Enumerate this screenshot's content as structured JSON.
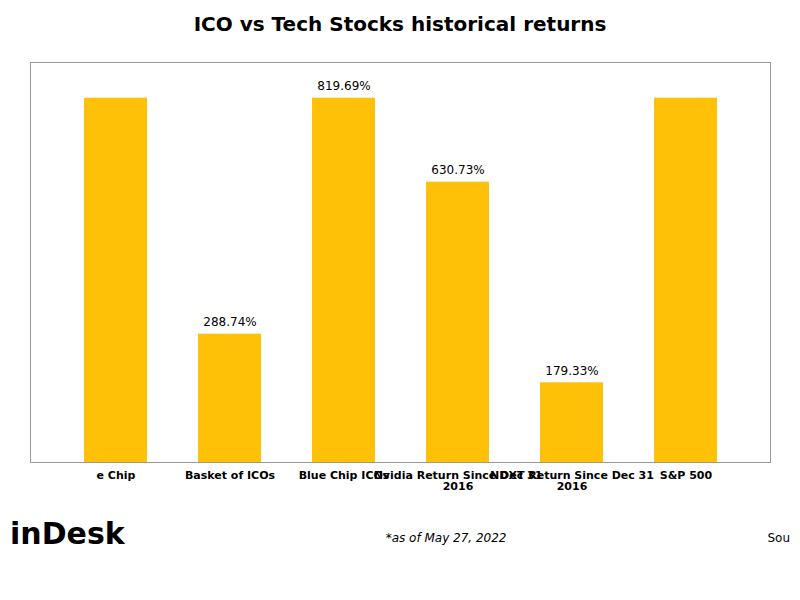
{
  "chart_data": {
    "type": "bar",
    "title": "ICO vs Tech Stocks historical returns",
    "categories": [
      "e Chip",
      "Basket of ICOs",
      "Blue Chip ICOs",
      "Nvidia Return Since Dec 31\n2016",
      "NDXT Return Since Dec 31\n2016",
      "S&P 500"
    ],
    "values": [
      819.69,
      288.74,
      819.69,
      630.73,
      179.33,
      819.69
    ],
    "value_labels": [
      null,
      "288.74%",
      "819.69%",
      "630.73%",
      "179.33%",
      null
    ],
    "color": "#FFC107",
    "ylim": [
      0,
      900
    ],
    "grid": false,
    "tick_labels": "x",
    "annotations": [
      "inDesk",
      "*as of May 27, 2022",
      "Sou"
    ]
  }
}
